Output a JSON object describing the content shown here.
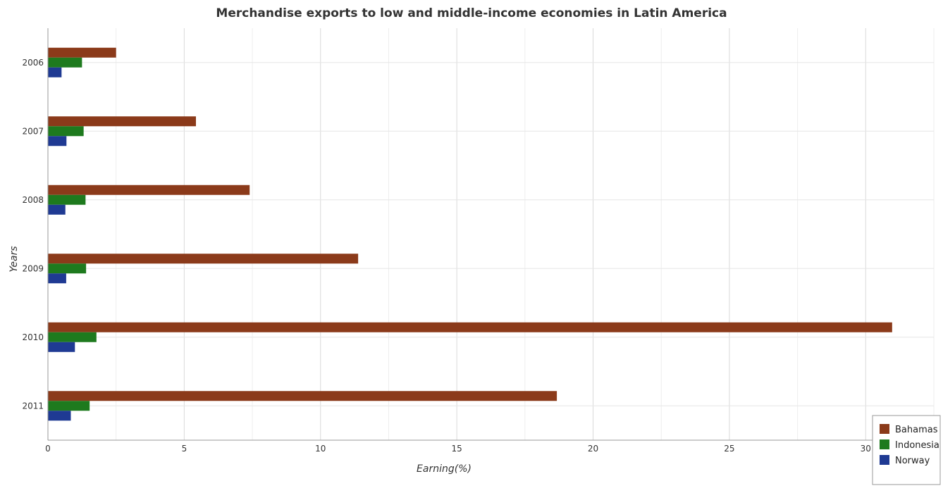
{
  "chart_data": {
    "type": "bar",
    "orientation": "horizontal",
    "title": "Merchandise exports to low and middle-income economies in Latin America",
    "xlabel": "Earning(%)",
    "ylabel": "Years",
    "categories": [
      "2006",
      "2007",
      "2008",
      "2009",
      "2010",
      "2011"
    ],
    "series": [
      {
        "name": "Bahamas",
        "color": "#8B3A1A",
        "values": [
          2.5,
          5.43,
          7.4,
          11.38,
          30.97,
          18.67
        ]
      },
      {
        "name": "Indonesia",
        "color": "#1E7A1E",
        "values": [
          1.25,
          1.31,
          1.38,
          1.4,
          1.78,
          1.53
        ]
      },
      {
        "name": "Norway",
        "color": "#1F3A93",
        "values": [
          0.5,
          0.68,
          0.64,
          0.67,
          0.99,
          0.84
        ]
      }
    ],
    "xlim": [
      0,
      32.5
    ],
    "xticks": [
      "0",
      "5",
      "10",
      "15",
      "20",
      "25",
      "30"
    ],
    "grid": true,
    "legend_position": "bottom-right"
  }
}
